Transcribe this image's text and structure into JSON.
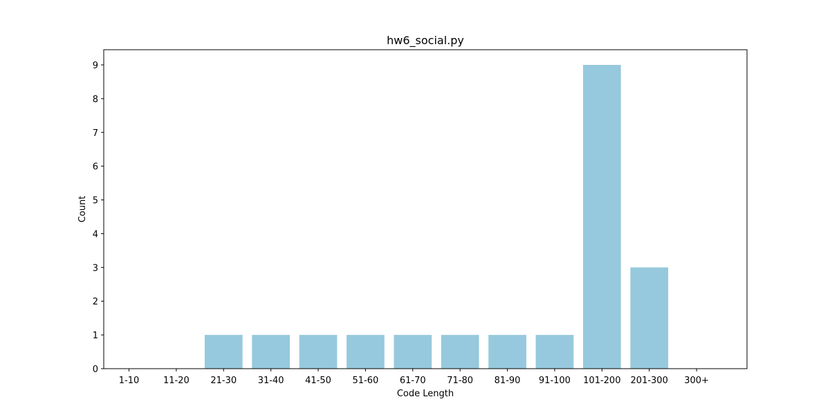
{
  "chart_data": {
    "type": "bar",
    "title": "hw6_social.py",
    "xlabel": "Code Length",
    "ylabel": "Count",
    "categories": [
      "1-10",
      "11-20",
      "21-30",
      "31-40",
      "41-50",
      "51-60",
      "61-70",
      "71-80",
      "81-90",
      "91-100",
      "101-200",
      "201-300",
      "300+"
    ],
    "values": [
      0,
      0,
      1,
      1,
      1,
      1,
      1,
      1,
      1,
      1,
      9,
      3,
      0
    ],
    "yticks": [
      "0",
      "1",
      "2",
      "3",
      "4",
      "5",
      "6",
      "7",
      "8",
      "9"
    ],
    "ylim": [
      0,
      9.45
    ],
    "grid": false,
    "bar_color": "#96c9dd"
  }
}
